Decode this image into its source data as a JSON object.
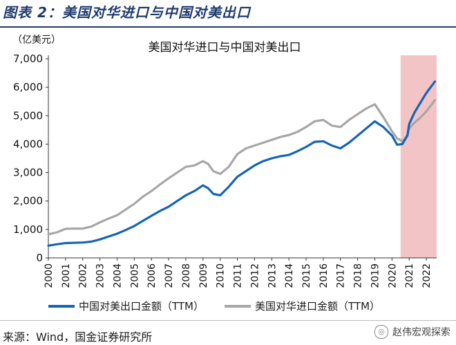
{
  "figure": {
    "title": "图表 2：美国对华进口与中国对美出口",
    "source": "来源：Wind，国金证券研究所",
    "watermark": "赵伟宏观探索"
  },
  "chart_data": {
    "type": "line",
    "title": "美国对华进口与中国对美出口",
    "ylabel": "（亿美元）",
    "xlabel": "",
    "ylim": [
      0,
      7000
    ],
    "yticks": [
      0,
      1000,
      2000,
      3000,
      4000,
      5000,
      6000,
      7000
    ],
    "ytick_labels": [
      "0",
      "1,000",
      "2,000",
      "3,000",
      "4,000",
      "5,000",
      "6,000",
      "7,000"
    ],
    "xlim": [
      2000,
      2022.6
    ],
    "xticks": [
      "2000",
      "2001",
      "2002",
      "2003",
      "2004",
      "2005",
      "2006",
      "2007",
      "2008",
      "2009",
      "2010",
      "2011",
      "2012",
      "2013",
      "2014",
      "2015",
      "2016",
      "2017",
      "2018",
      "2019",
      "2020",
      "2021",
      "2022"
    ],
    "grid": false,
    "legend_position": "bottom",
    "highlight": {
      "x_from": 2020.5,
      "x_to": 2022.6,
      "color": "#f2c4c6"
    },
    "series": [
      {
        "name": "中国对美出口金额（TTM）",
        "color": "#1464b4",
        "points": [
          [
            2000,
            430
          ],
          [
            2000.5,
            480
          ],
          [
            2001,
            520
          ],
          [
            2001.5,
            530
          ],
          [
            2002,
            540
          ],
          [
            2002.5,
            570
          ],
          [
            2003,
            650
          ],
          [
            2003.5,
            750
          ],
          [
            2004,
            850
          ],
          [
            2004.5,
            980
          ],
          [
            2005,
            1120
          ],
          [
            2005.5,
            1300
          ],
          [
            2006,
            1480
          ],
          [
            2006.5,
            1650
          ],
          [
            2007,
            1800
          ],
          [
            2007.5,
            2000
          ],
          [
            2008,
            2200
          ],
          [
            2008.5,
            2350
          ],
          [
            2009,
            2550
          ],
          [
            2009.3,
            2450
          ],
          [
            2009.6,
            2250
          ],
          [
            2010,
            2200
          ],
          [
            2010.5,
            2500
          ],
          [
            2011,
            2850
          ],
          [
            2011.5,
            3050
          ],
          [
            2012,
            3250
          ],
          [
            2012.5,
            3400
          ],
          [
            2013,
            3500
          ],
          [
            2013.5,
            3570
          ],
          [
            2014,
            3620
          ],
          [
            2014.5,
            3750
          ],
          [
            2015,
            3900
          ],
          [
            2015.5,
            4080
          ],
          [
            2016,
            4100
          ],
          [
            2016.5,
            3950
          ],
          [
            2017,
            3850
          ],
          [
            2017.5,
            4050
          ],
          [
            2018,
            4300
          ],
          [
            2018.5,
            4550
          ],
          [
            2019,
            4800
          ],
          [
            2019.5,
            4600
          ],
          [
            2020,
            4300
          ],
          [
            2020.3,
            3980
          ],
          [
            2020.6,
            4000
          ],
          [
            2020.9,
            4300
          ],
          [
            2021,
            4700
          ],
          [
            2021.3,
            5100
          ],
          [
            2021.6,
            5400
          ],
          [
            2022,
            5800
          ],
          [
            2022.5,
            6200
          ]
        ]
      },
      {
        "name": "美国对华进口金额（TTM）",
        "color": "#a6a6a6",
        "points": [
          [
            2000,
            830
          ],
          [
            2000.5,
            900
          ],
          [
            2001,
            1020
          ],
          [
            2001.5,
            1030
          ],
          [
            2002,
            1030
          ],
          [
            2002.5,
            1100
          ],
          [
            2003,
            1250
          ],
          [
            2003.5,
            1380
          ],
          [
            2004,
            1500
          ],
          [
            2004.5,
            1700
          ],
          [
            2005,
            1900
          ],
          [
            2005.5,
            2150
          ],
          [
            2006,
            2350
          ],
          [
            2006.5,
            2580
          ],
          [
            2007,
            2800
          ],
          [
            2007.5,
            3000
          ],
          [
            2008,
            3200
          ],
          [
            2008.5,
            3250
          ],
          [
            2009,
            3400
          ],
          [
            2009.3,
            3300
          ],
          [
            2009.6,
            3050
          ],
          [
            2010,
            2950
          ],
          [
            2010.5,
            3200
          ],
          [
            2011,
            3650
          ],
          [
            2011.5,
            3850
          ],
          [
            2012,
            3950
          ],
          [
            2012.5,
            4050
          ],
          [
            2013,
            4150
          ],
          [
            2013.5,
            4250
          ],
          [
            2014,
            4320
          ],
          [
            2014.5,
            4430
          ],
          [
            2015,
            4600
          ],
          [
            2015.5,
            4800
          ],
          [
            2016,
            4850
          ],
          [
            2016.5,
            4650
          ],
          [
            2017,
            4600
          ],
          [
            2017.5,
            4850
          ],
          [
            2018,
            5050
          ],
          [
            2018.5,
            5250
          ],
          [
            2019,
            5400
          ],
          [
            2019.5,
            4950
          ],
          [
            2020,
            4450
          ],
          [
            2020.3,
            4200
          ],
          [
            2020.6,
            4100
          ],
          [
            2020.9,
            4300
          ],
          [
            2021,
            4550
          ],
          [
            2021.3,
            4750
          ],
          [
            2021.6,
            4900
          ],
          [
            2022,
            5150
          ],
          [
            2022.5,
            5550
          ]
        ]
      }
    ]
  }
}
